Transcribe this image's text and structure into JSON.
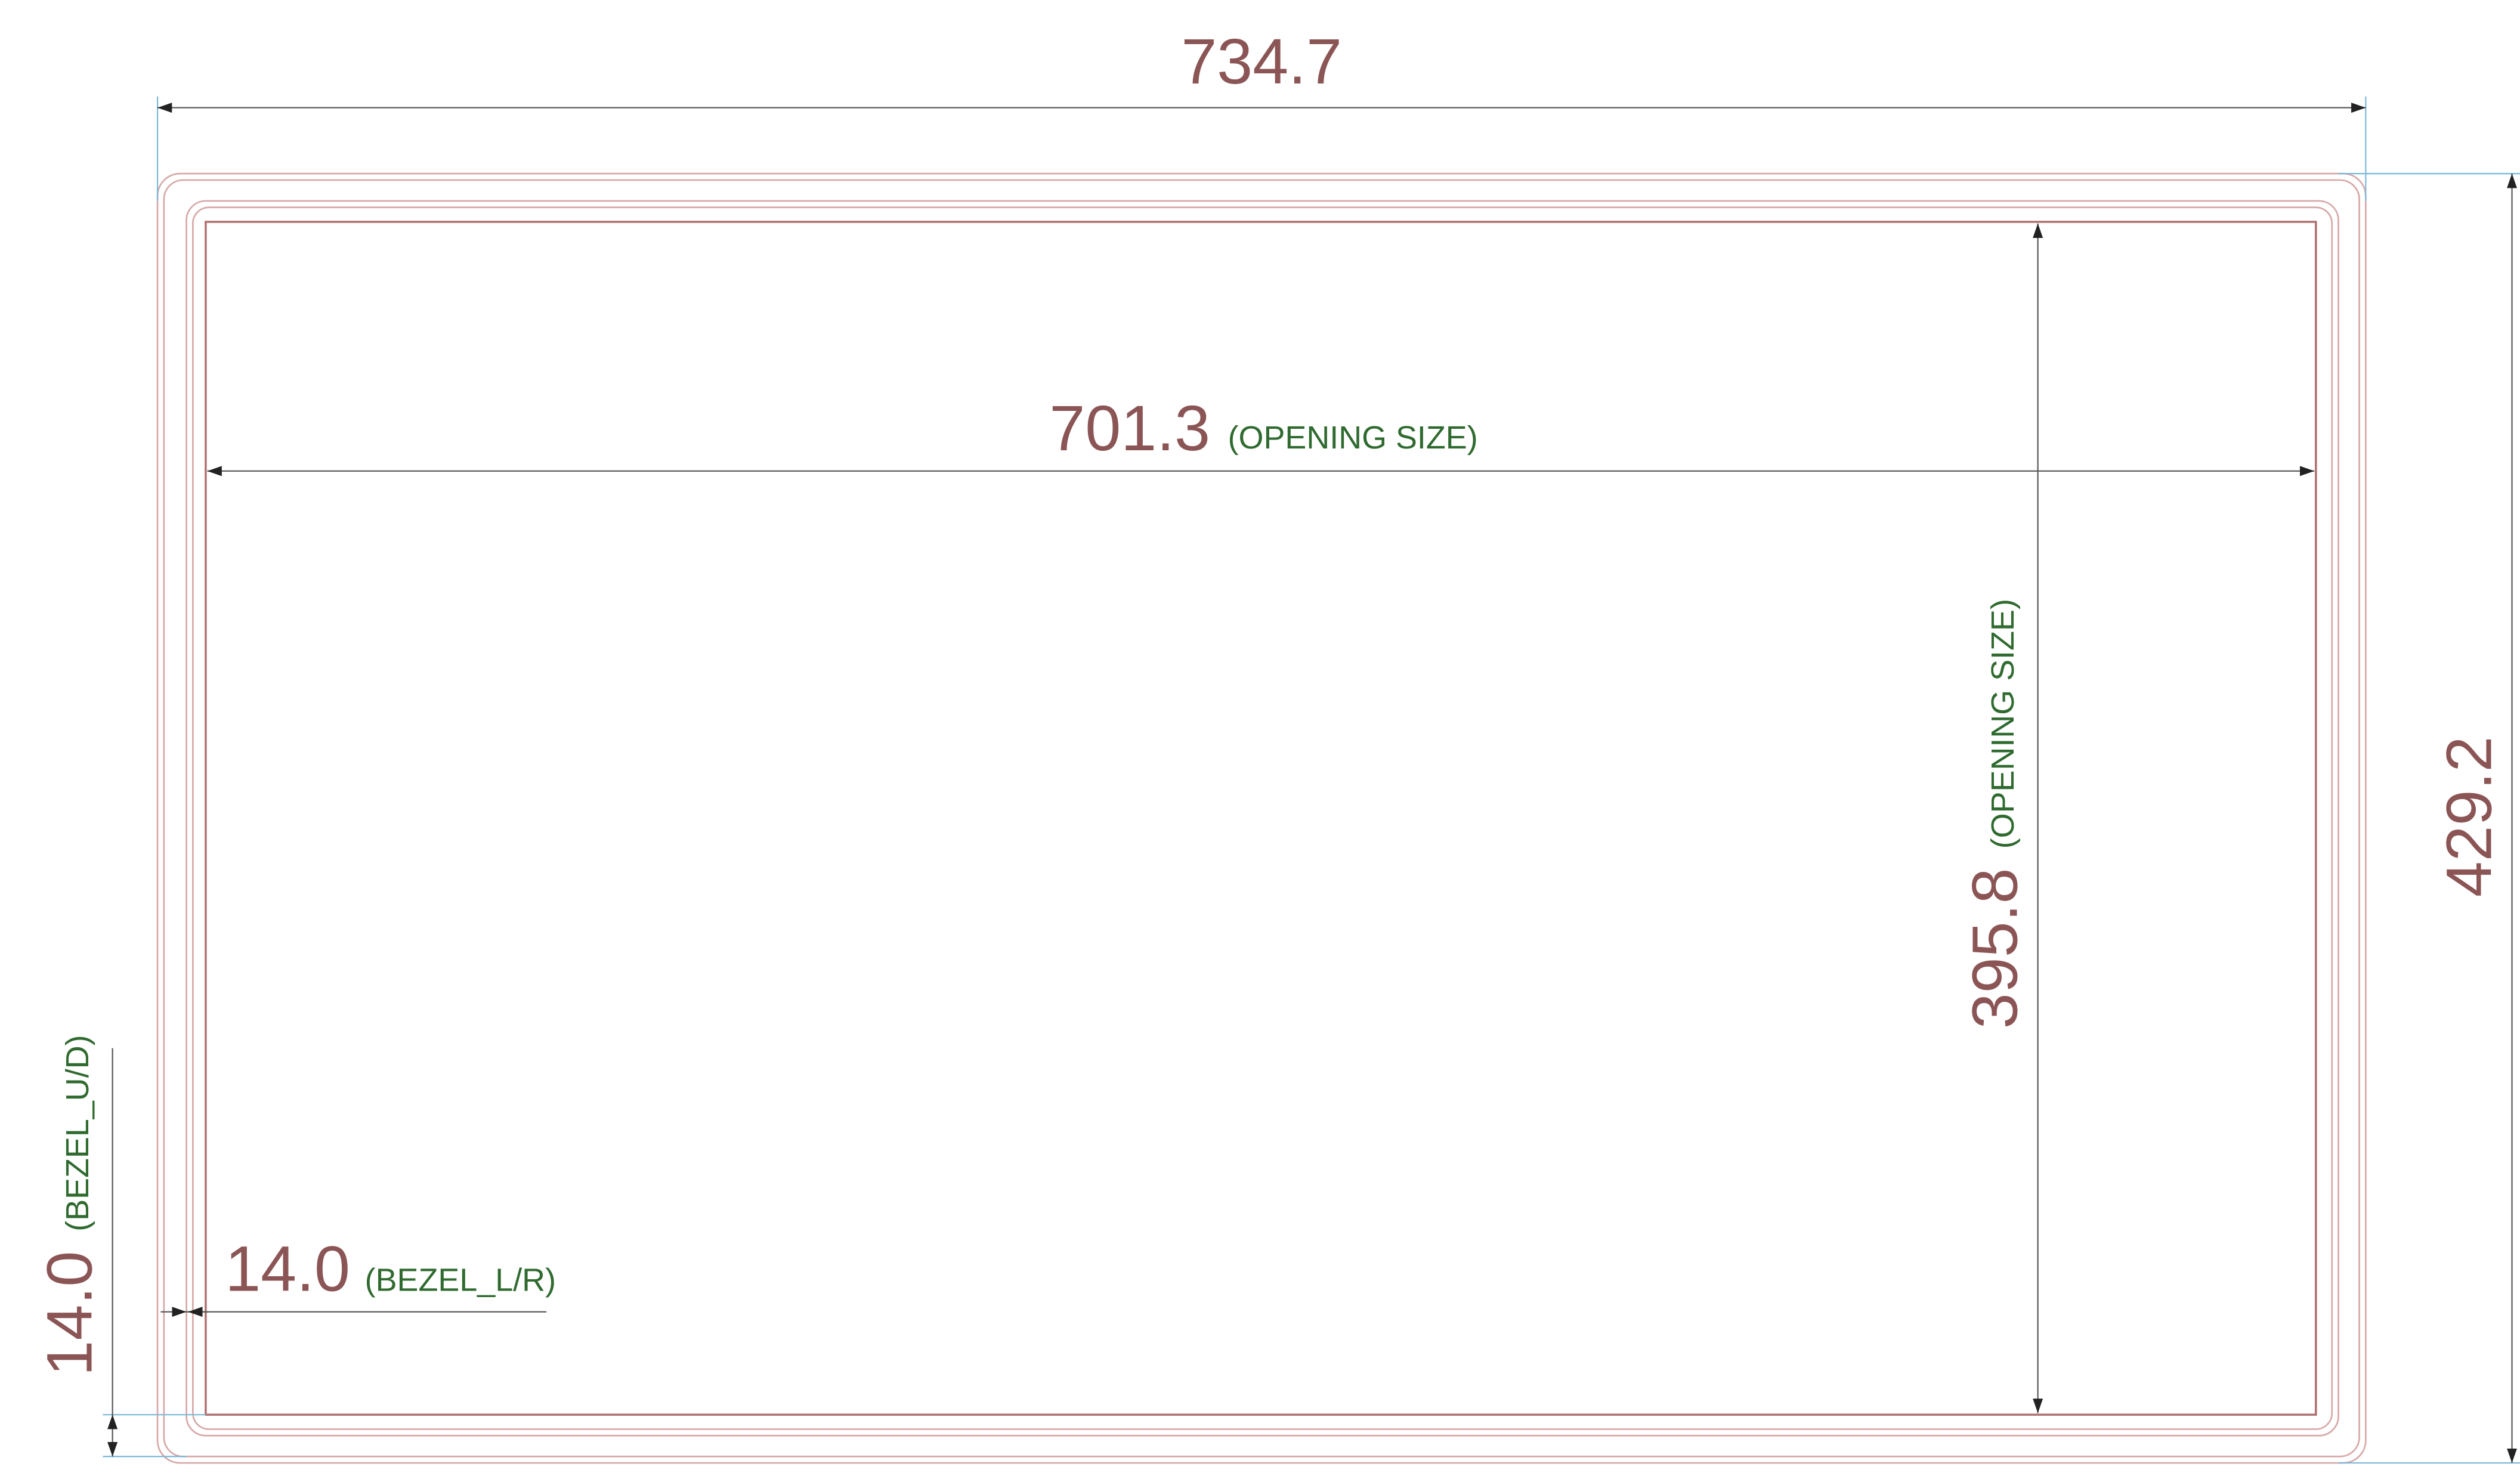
{
  "dimensions": {
    "overall_width": {
      "value": "734.7"
    },
    "overall_height": {
      "value": "429.2"
    },
    "opening_width": {
      "value": "701.3",
      "note": "(OPENING SIZE)"
    },
    "opening_height": {
      "value": "395.8",
      "note": "(OPENING SIZE)"
    },
    "bezel_lr": {
      "value": "14.0",
      "note": "(BEZEL_L/R)"
    },
    "bezel_ud": {
      "value": "14.0",
      "note": "(BEZEL_U/D)"
    }
  }
}
